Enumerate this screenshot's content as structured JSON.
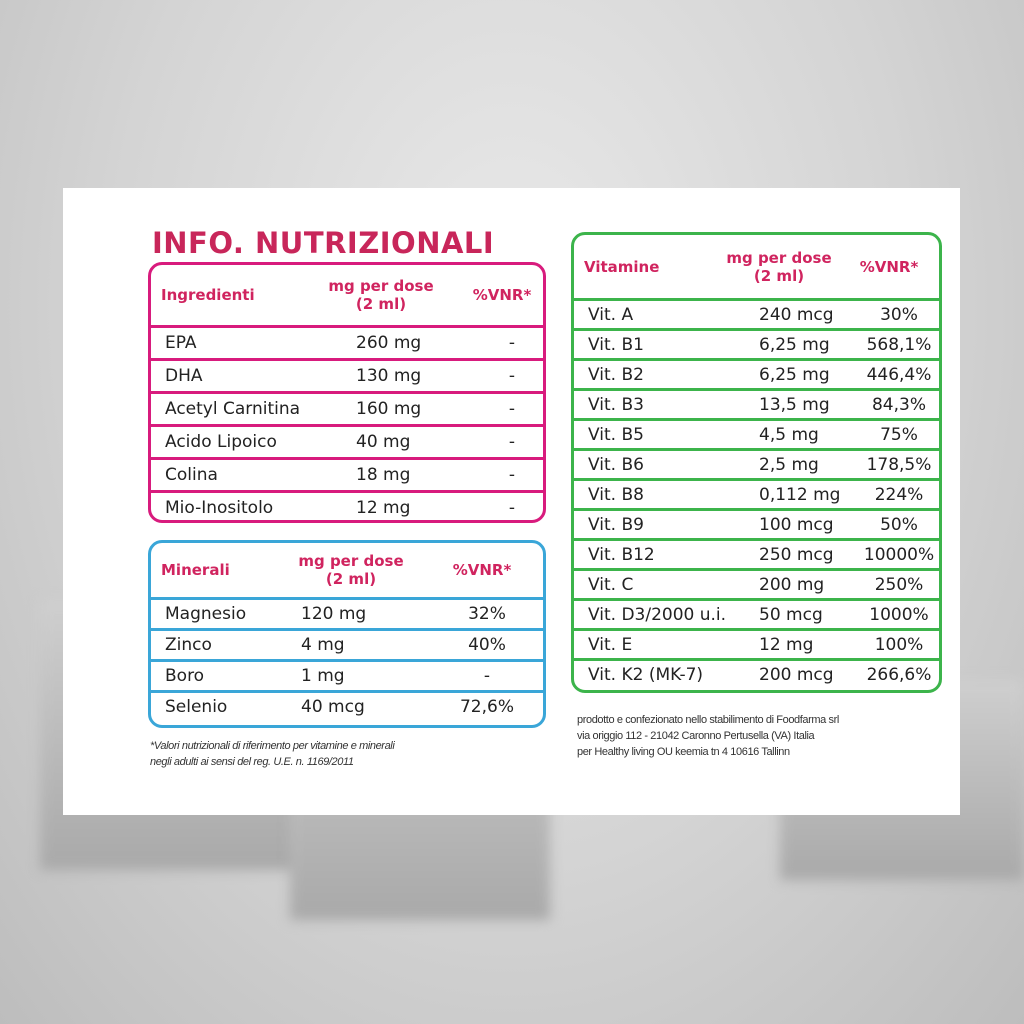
{
  "title": "INFO. NUTRIZIONALI",
  "colors": {
    "title": "#c8265a",
    "ingredients_border": "#d81b7d",
    "minerals_border": "#3aa6d8",
    "vitamins_border": "#3cb44b",
    "header_text": "#d0245f"
  },
  "ingredients": {
    "headers": [
      "Ingredienti",
      "mg per dose\n(2 ml)",
      "%VNR*"
    ],
    "rows": [
      [
        "EPA",
        "260 mg",
        "-"
      ],
      [
        "DHA",
        "130 mg",
        "-"
      ],
      [
        "Acetyl Carnitina",
        "160 mg",
        "-"
      ],
      [
        "Acido Lipoico",
        "40 mg",
        "-"
      ],
      [
        "Colina",
        "18 mg",
        "-"
      ],
      [
        "Mio-Inositolo",
        "12 mg",
        "-"
      ]
    ]
  },
  "minerals": {
    "headers": [
      "Minerali",
      "mg per dose\n(2 ml)",
      "%VNR*"
    ],
    "rows": [
      [
        "Magnesio",
        "120 mg",
        "32%"
      ],
      [
        "Zinco",
        "4 mg",
        "40%"
      ],
      [
        "Boro",
        "1 mg",
        "-"
      ],
      [
        "Selenio",
        "40 mcg",
        "72,6%"
      ]
    ]
  },
  "vitamins": {
    "headers": [
      "Vitamine",
      "mg per dose\n(2 ml)",
      "%VNR*"
    ],
    "rows": [
      [
        "Vit. A",
        "240 mcg",
        "30%"
      ],
      [
        "Vit. B1",
        "6,25 mg",
        "568,1%"
      ],
      [
        "Vit. B2",
        "6,25 mg",
        "446,4%"
      ],
      [
        "Vit. B3",
        "13,5 mg",
        "84,3%"
      ],
      [
        "Vit. B5",
        "4,5 mg",
        "75%"
      ],
      [
        "Vit. B6",
        "2,5 mg",
        "178,5%"
      ],
      [
        "Vit. B8",
        "0,112 mg",
        "224%"
      ],
      [
        "Vit. B9",
        "100 mcg",
        "50%"
      ],
      [
        "Vit. B12",
        "250 mcg",
        "10000%"
      ],
      [
        "Vit.  C",
        "200 mg",
        "250%"
      ],
      [
        "Vit.  D3/2000 u.i.",
        "50 mcg",
        "1000%"
      ],
      [
        "Vit.  E",
        "12 mg",
        "100%"
      ],
      [
        "Vit. K2 (MK-7)",
        "200 mcg",
        "266,6%"
      ]
    ]
  },
  "footnote": [
    "*Valori nutrizionali di riferimento per vitamine e minerali",
    "negli adulti ai sensi del reg. U.E. n. 1169/2011"
  ],
  "producer": [
    "prodotto e confezionato nello stabilimento di Foodfarma srl",
    "via origgio 112 - 21042 Caronno Pertusella (VA) Italia",
    "per Healthy living OU keemia tn 4 10616 Tallinn"
  ]
}
